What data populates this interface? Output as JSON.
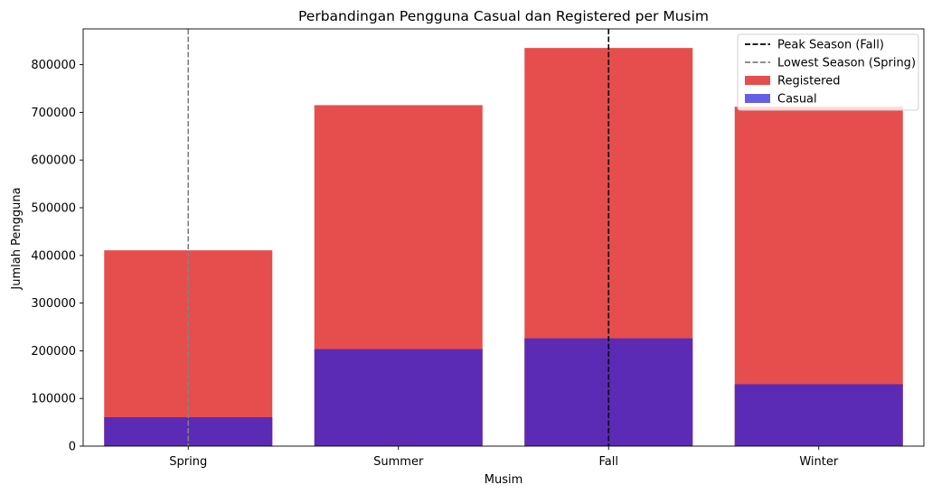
{
  "chart_data": {
    "type": "bar",
    "stacking": "overlay",
    "title": "Perbandingan Pengguna Casual dan Registered per Musim",
    "xlabel": "Musim",
    "ylabel": "Jumlah Pengguna",
    "categories": [
      "Spring",
      "Summer",
      "Fall",
      "Winter"
    ],
    "ylim": [
      0,
      875000
    ],
    "yticks": [
      0,
      100000,
      200000,
      300000,
      400000,
      500000,
      600000,
      700000,
      800000
    ],
    "grid": false,
    "legend_position": "top-right",
    "series": [
      {
        "name": "Registered",
        "color": "#e64d4d",
        "values": [
          410700,
          715100,
          835000,
          711800
        ]
      },
      {
        "name": "Casual",
        "color": "#5b2bb5",
        "legend_color": "#6460e6",
        "values": [
          60600,
          203500,
          226100,
          129800
        ]
      }
    ],
    "reference_lines": [
      {
        "name": "Peak Season (Fall)",
        "category": "Fall",
        "color": "#000000",
        "style": "dashed"
      },
      {
        "name": "Lowest Season (Spring)",
        "category": "Spring",
        "color": "#808080",
        "style": "dashed"
      }
    ]
  }
}
